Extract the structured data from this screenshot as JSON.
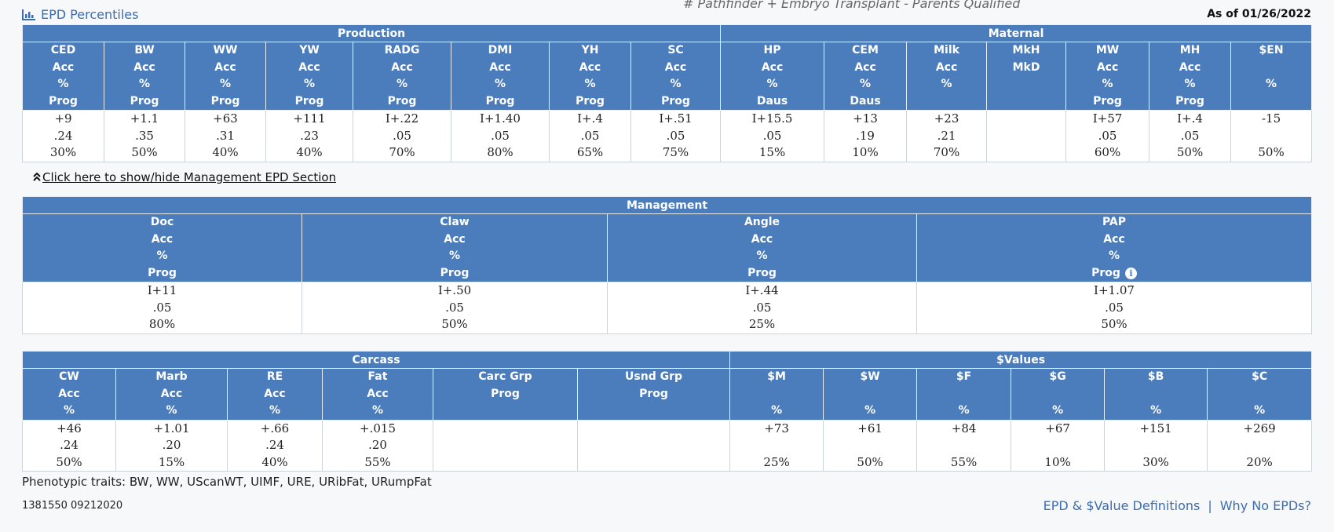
{
  "header": {
    "title": "EPD Percentiles",
    "cutoff_text": "# Pathfinder + Embryo Transplant - Parents Qualified",
    "as_of": "As of 01/26/2022"
  },
  "production_maternal": {
    "groups": [
      "Production",
      "Maternal"
    ],
    "columns": [
      {
        "h": [
          "CED",
          "Acc",
          "%",
          "Prog"
        ],
        "v": [
          "+9",
          ".24",
          "30%"
        ]
      },
      {
        "h": [
          "BW",
          "Acc",
          "%",
          "Prog"
        ],
        "v": [
          "+1.1",
          ".35",
          "50%"
        ]
      },
      {
        "h": [
          "WW",
          "Acc",
          "%",
          "Prog"
        ],
        "v": [
          "+63",
          ".31",
          "40%"
        ]
      },
      {
        "h": [
          "YW",
          "Acc",
          "%",
          "Prog"
        ],
        "v": [
          "+111",
          ".23",
          "40%"
        ]
      },
      {
        "h": [
          "RADG",
          "Acc",
          "%",
          "Prog"
        ],
        "v": [
          "I+.22",
          ".05",
          "70%"
        ]
      },
      {
        "h": [
          "DMI",
          "Acc",
          "%",
          "Prog"
        ],
        "v": [
          "I+1.40",
          ".05",
          "80%"
        ]
      },
      {
        "h": [
          "YH",
          "Acc",
          "%",
          "Prog"
        ],
        "v": [
          "I+.4",
          ".05",
          "65%"
        ]
      },
      {
        "h": [
          "SC",
          "Acc",
          "%",
          "Prog"
        ],
        "v": [
          "I+.51",
          ".05",
          "75%"
        ]
      },
      {
        "h": [
          "HP",
          "Acc",
          "%",
          "Daus"
        ],
        "v": [
          "I+15.5",
          ".05",
          "15%"
        ]
      },
      {
        "h": [
          "CEM",
          "Acc",
          "%",
          "Daus"
        ],
        "v": [
          "+13",
          ".19",
          "10%"
        ]
      },
      {
        "h": [
          "Milk",
          "Acc",
          "%",
          ""
        ],
        "v": [
          "+23",
          ".21",
          "70%"
        ]
      },
      {
        "h": [
          "MkH",
          "MkD",
          "",
          ""
        ],
        "v": [
          "",
          "",
          ""
        ]
      },
      {
        "h": [
          "MW",
          "Acc",
          "%",
          "Prog"
        ],
        "v": [
          "I+57",
          ".05",
          "60%"
        ]
      },
      {
        "h": [
          "MH",
          "Acc",
          "%",
          "Prog"
        ],
        "v": [
          "I+.4",
          ".05",
          "50%"
        ]
      },
      {
        "h": [
          "$EN",
          "",
          "%",
          ""
        ],
        "v": [
          "-15",
          "",
          "50%"
        ]
      }
    ]
  },
  "toggle_label": "Click here to show/hide Management EPD Section",
  "management": {
    "group": "Management",
    "columns": [
      {
        "h": [
          "Doc",
          "Acc",
          "%",
          "Prog"
        ],
        "v": [
          "I+11",
          ".05",
          "80%"
        ]
      },
      {
        "h": [
          "Claw",
          "Acc",
          "%",
          "Prog"
        ],
        "v": [
          "I+.50",
          ".05",
          "50%"
        ]
      },
      {
        "h": [
          "Angle",
          "Acc",
          "%",
          "Prog"
        ],
        "v": [
          "I+.44",
          ".05",
          "25%"
        ]
      },
      {
        "h": [
          "PAP",
          "Acc",
          "%",
          "Prog"
        ],
        "v": [
          "I+1.07",
          ".05",
          "50%"
        ]
      }
    ],
    "info_glyph": "i"
  },
  "carcass_values": {
    "groups": [
      "Carcass",
      "$Values"
    ],
    "columns": [
      {
        "h": [
          "CW",
          "Acc",
          "%"
        ],
        "v": [
          "+46",
          ".24",
          "50%"
        ]
      },
      {
        "h": [
          "Marb",
          "Acc",
          "%"
        ],
        "v": [
          "+1.01",
          ".20",
          "15%"
        ]
      },
      {
        "h": [
          "RE",
          "Acc",
          "%"
        ],
        "v": [
          "+.66",
          ".24",
          "40%"
        ]
      },
      {
        "h": [
          "Fat",
          "Acc",
          "%"
        ],
        "v": [
          "+.015",
          ".20",
          "55%"
        ]
      },
      {
        "h": [
          "Carc Grp",
          "Prog",
          ""
        ],
        "v": [
          "",
          "",
          ""
        ]
      },
      {
        "h": [
          "Usnd Grp",
          "Prog",
          ""
        ],
        "v": [
          "",
          "",
          ""
        ]
      },
      {
        "h": [
          "$M",
          "",
          "%"
        ],
        "v": [
          "+73",
          "",
          "25%"
        ]
      },
      {
        "h": [
          "$W",
          "",
          "%"
        ],
        "v": [
          "+61",
          "",
          "50%"
        ]
      },
      {
        "h": [
          "$F",
          "",
          "%"
        ],
        "v": [
          "+84",
          "",
          "55%"
        ]
      },
      {
        "h": [
          "$G",
          "",
          "%"
        ],
        "v": [
          "+67",
          "",
          "10%"
        ]
      },
      {
        "h": [
          "$B",
          "",
          "%"
        ],
        "v": [
          "+151",
          "",
          "30%"
        ]
      },
      {
        "h": [
          "$C",
          "",
          "%"
        ],
        "v": [
          "+269",
          "",
          "20%"
        ]
      }
    ]
  },
  "phenotypic_traits": "Phenotypic traits: BW, WW, UScanWT, UIMF, URE, URibFat, URumpFat",
  "registration_id": "1381550 09212020",
  "links": {
    "definitions": "EPD & $Value Definitions",
    "separator": "|",
    "why_no_epds": "Why No EPDs?"
  },
  "icons": [
    "bar-chart-icon",
    "double-chevron-up-icon",
    "info-icon"
  ],
  "colors": {
    "header_bg": "#4b7dbd",
    "link": "#3d6db0",
    "page_bg": "#f6f8fa"
  }
}
